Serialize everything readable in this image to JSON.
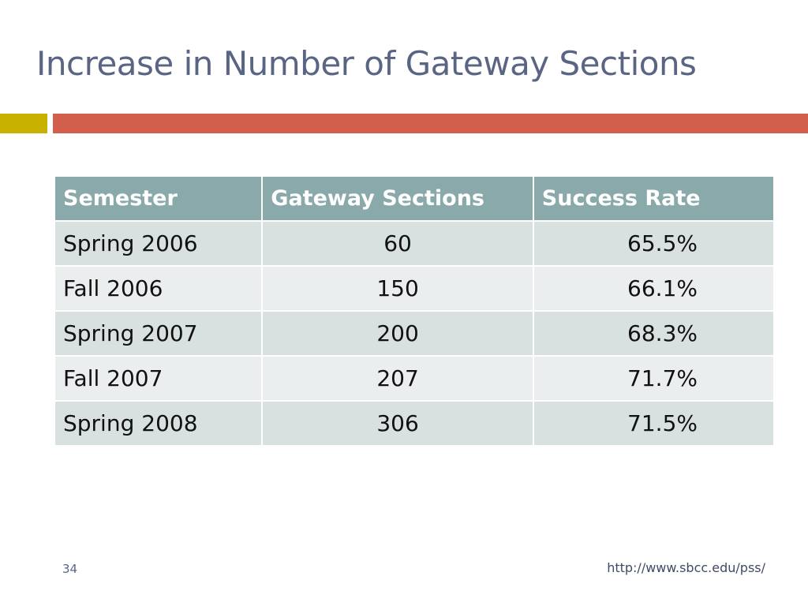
{
  "slide": {
    "title": "Increase in Number of Gateway Sections",
    "slide_number": "34",
    "footer_url": "http://www.sbcc.edu/pss/"
  },
  "colors": {
    "title_text": "#5a6584",
    "accent_gold": "#c9b100",
    "accent_orange": "#d25f4c",
    "table_header": "#89a9aa",
    "row_odd": "#d9e0e0",
    "row_even": "#eaeeee"
  },
  "chart_data": {
    "type": "table",
    "columns": [
      "Semester",
      "Gateway Sections",
      "Success Rate"
    ],
    "rows": [
      [
        "Spring 2006",
        "60",
        "65.5%"
      ],
      [
        "Fall 2006",
        "150",
        "66.1%"
      ],
      [
        "Spring 2007",
        "200",
        "68.3%"
      ],
      [
        "Fall 2007",
        "207",
        "71.7%"
      ],
      [
        "Spring 2008",
        "306",
        "71.5%"
      ]
    ]
  }
}
